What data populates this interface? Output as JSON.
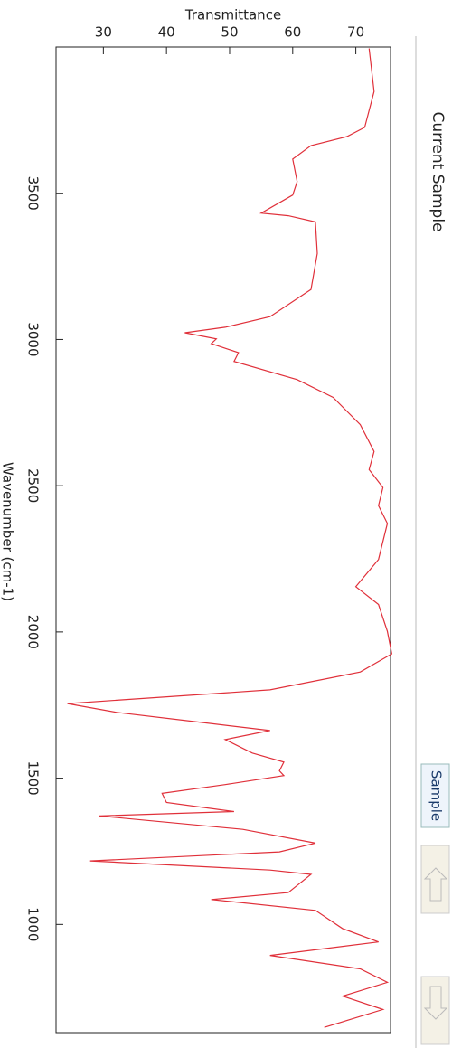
{
  "chart_data": {
    "type": "line",
    "title": "Current Sample",
    "x_label": "Wavenumber (cm-1)",
    "y_label": "Transmittance",
    "button": "Sample",
    "x": [
      3995,
      3848,
      3725,
      3694,
      3663,
      3617,
      3540,
      3494,
      3432,
      3423,
      3402,
      3294,
      3171,
      3078,
      3042,
      3023,
      3002,
      2986,
      2955,
      2925,
      2863,
      2802,
      2709,
      2617,
      2555,
      2494,
      2432,
      2371,
      2248,
      2155,
      2094,
      2002,
      1925,
      1863,
      1802,
      1771,
      1755,
      1725,
      1694,
      1663,
      1632,
      1586,
      1555,
      1525,
      1509,
      1478,
      1448,
      1417,
      1386,
      1371,
      1325,
      1278,
      1248,
      1217,
      1186,
      1171,
      1109,
      1085,
      1048,
      986,
      940,
      894,
      848,
      802,
      755,
      709,
      648
    ],
    "series": [
      {
        "name": "Transmittance",
        "color": "#e0303a",
        "values": [
          72.1,
          72.9,
          71.4,
          68.6,
          62.9,
          60,
          60.7,
          60,
          55,
          59.3,
          63.6,
          63.9,
          62.9,
          56.4,
          49.3,
          42.9,
          47.9,
          47.1,
          51.4,
          50.7,
          60.7,
          66.4,
          70.7,
          72.9,
          72.1,
          74.3,
          73.6,
          75,
          73.6,
          70,
          73.6,
          75,
          75.7,
          70.7,
          56.4,
          35,
          24.3,
          32.1,
          44.3,
          56.4,
          49.3,
          53.6,
          58.6,
          57.9,
          58.6,
          49.3,
          39.3,
          40,
          50.7,
          29.3,
          52.1,
          63.6,
          57.9,
          27.9,
          56.4,
          62.9,
          59.3,
          47.1,
          63.6,
          67.9,
          73.6,
          56.4,
          70.7,
          75,
          67.9,
          74.3,
          65
        ]
      }
    ],
    "xlim": [
      4000,
      630
    ],
    "xticks": [
      3500,
      3000,
      2500,
      2000,
      1500,
      1000
    ],
    "ylim": [
      22.5,
      75.5
    ],
    "yticks": [
      30,
      40,
      50,
      60,
      70
    ]
  }
}
